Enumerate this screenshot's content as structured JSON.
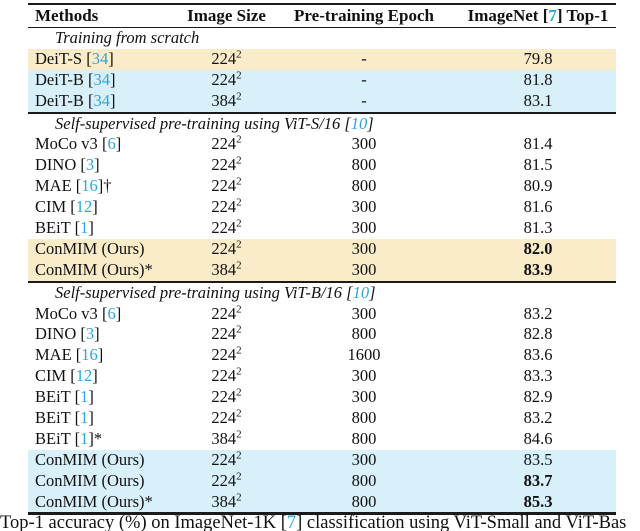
{
  "colors": {
    "cite": "#2aa6df",
    "highlight_yellow": "#faecc8",
    "highlight_blue": "#d8f0fa",
    "rule": "#1b1b1b"
  },
  "header": {
    "methods": "Methods",
    "image_size": "Image Size",
    "epoch": "Pre-training Epoch",
    "top1_prefix": "ImageNet [",
    "top1_cite": "7",
    "top1_suffix": "] Top-1"
  },
  "sections": [
    {
      "label": {
        "text": "Training from scratch",
        "cite": ""
      },
      "rows": [
        {
          "method": "DeiT-S",
          "cite": "34",
          "suffix": "",
          "size": "224",
          "size_sup": "2",
          "epoch": "-",
          "top1": "79.8",
          "bold": false,
          "highlight": "yellow"
        },
        {
          "method": "DeiT-B",
          "cite": "34",
          "suffix": "",
          "size": "224",
          "size_sup": "2",
          "epoch": "-",
          "top1": "81.8",
          "bold": false,
          "highlight": "blue"
        },
        {
          "method": "DeiT-B",
          "cite": "34",
          "suffix": "",
          "size": "384",
          "size_sup": "2",
          "epoch": "-",
          "top1": "83.1",
          "bold": false,
          "highlight": "blue"
        }
      ]
    },
    {
      "label": {
        "text": "Self-supervised pre-training using ViT-S/16",
        "cite": "10"
      },
      "rows": [
        {
          "method": "MoCo v3",
          "cite": "6",
          "suffix": "",
          "size": "224",
          "size_sup": "2",
          "epoch": "300",
          "top1": "81.4",
          "bold": false,
          "highlight": ""
        },
        {
          "method": "DINO",
          "cite": "3",
          "suffix": "",
          "size": "224",
          "size_sup": "2",
          "epoch": "800",
          "top1": "81.5",
          "bold": false,
          "highlight": ""
        },
        {
          "method": "MAE",
          "cite": "16",
          "suffix": "†",
          "size": "224",
          "size_sup": "2",
          "epoch": "800",
          "top1": "80.9",
          "bold": false,
          "highlight": ""
        },
        {
          "method": "CIM",
          "cite": "12",
          "suffix": "",
          "size": "224",
          "size_sup": "2",
          "epoch": "300",
          "top1": "81.6",
          "bold": false,
          "highlight": ""
        },
        {
          "method": "BEiT",
          "cite": "1",
          "suffix": "",
          "size": "224",
          "size_sup": "2",
          "epoch": "300",
          "top1": "81.3",
          "bold": false,
          "highlight": ""
        },
        {
          "method": "ConMIM (Ours)",
          "cite": "",
          "suffix": "",
          "size": "224",
          "size_sup": "2",
          "epoch": "300",
          "top1": "82.0",
          "bold": true,
          "highlight": "yellow"
        },
        {
          "method": "ConMIM (Ours)",
          "cite": "",
          "suffix": "*",
          "size": "384",
          "size_sup": "2",
          "epoch": "300",
          "top1": "83.9",
          "bold": true,
          "highlight": "yellow"
        }
      ]
    },
    {
      "label": {
        "text": "Self-supervised pre-training using ViT-B/16",
        "cite": "10"
      },
      "rows": [
        {
          "method": "MoCo v3",
          "cite": "6",
          "suffix": "",
          "size": "224",
          "size_sup": "2",
          "epoch": "300",
          "top1": "83.2",
          "bold": false,
          "highlight": ""
        },
        {
          "method": "DINO",
          "cite": "3",
          "suffix": "",
          "size": "224",
          "size_sup": "2",
          "epoch": "800",
          "top1": "82.8",
          "bold": false,
          "highlight": ""
        },
        {
          "method": "MAE",
          "cite": "16",
          "suffix": "",
          "size": "224",
          "size_sup": "2",
          "epoch": "1600",
          "top1": "83.6",
          "bold": false,
          "highlight": ""
        },
        {
          "method": "CIM",
          "cite": "12",
          "suffix": "",
          "size": "224",
          "size_sup": "2",
          "epoch": "300",
          "top1": "83.3",
          "bold": false,
          "highlight": ""
        },
        {
          "method": "BEiT",
          "cite": "1",
          "suffix": "",
          "size": "224",
          "size_sup": "2",
          "epoch": "300",
          "top1": "82.9",
          "bold": false,
          "highlight": ""
        },
        {
          "method": "BEiT",
          "cite": "1",
          "suffix": "",
          "size": "224",
          "size_sup": "2",
          "epoch": "800",
          "top1": "83.2",
          "bold": false,
          "highlight": ""
        },
        {
          "method": "BEiT",
          "cite": "1",
          "suffix": "*",
          "size": "384",
          "size_sup": "2",
          "epoch": "800",
          "top1": "84.6",
          "bold": false,
          "highlight": ""
        },
        {
          "method": "ConMIM (Ours)",
          "cite": "",
          "suffix": "",
          "size": "224",
          "size_sup": "2",
          "epoch": "300",
          "top1": "83.5",
          "bold": false,
          "highlight": "blue"
        },
        {
          "method": "ConMIM (Ours)",
          "cite": "",
          "suffix": "",
          "size": "224",
          "size_sup": "2",
          "epoch": "800",
          "top1": "83.7",
          "bold": true,
          "highlight": "blue"
        },
        {
          "method": "ConMIM (Ours)",
          "cite": "",
          "suffix": "*",
          "size": "384",
          "size_sup": "2",
          "epoch": "800",
          "top1": "85.3",
          "bold": true,
          "highlight": "blue"
        }
      ]
    }
  ],
  "caption": {
    "prefix": "Top-1 accuracy (%) on ImageNet-1K [",
    "cite": "7",
    "suffix": "] classification using ViT-Small and ViT-Bas"
  }
}
